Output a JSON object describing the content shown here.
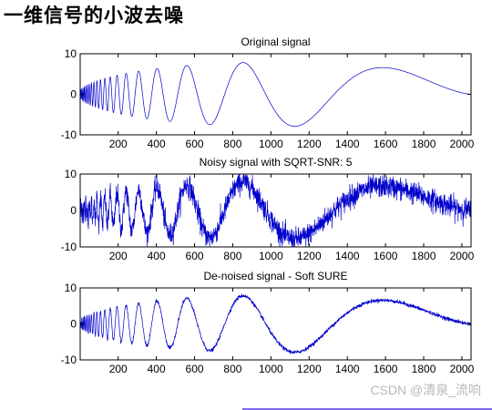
{
  "page": {
    "heading": "一维信号的小波去噪",
    "watermark": "CSDN @清泉_流响",
    "accent_color": "#7b68ee"
  },
  "chart_data": [
    {
      "type": "line",
      "title": "Original signal",
      "xlabel": "",
      "ylabel": "",
      "xlim": [
        1,
        2048
      ],
      "ylim": [
        -10,
        10
      ],
      "xticks": [
        200,
        400,
        600,
        800,
        1000,
        1200,
        1400,
        1600,
        1800,
        2000
      ],
      "xtick_labels": [
        "200",
        "400",
        "600",
        "800",
        "1000",
        "1200",
        "1400",
        "1600",
        "1800",
        "2000"
      ],
      "yticks": [
        10,
        0,
        -10
      ],
      "ytick_labels": [
        "10",
        "0",
        "-10"
      ],
      "grid": false,
      "series": [
        {
          "color": "#0000cc",
          "noise_level": 0,
          "formula": "doppler"
        }
      ]
    },
    {
      "type": "line",
      "title": "Noisy signal with SQRT-SNR: 5",
      "xlabel": "",
      "ylabel": "",
      "xlim": [
        1,
        2048
      ],
      "ylim": [
        -10,
        10
      ],
      "xticks": [
        200,
        400,
        600,
        800,
        1000,
        1200,
        1400,
        1600,
        1800,
        2000
      ],
      "xtick_labels": [
        "200",
        "400",
        "600",
        "800",
        "1000",
        "1200",
        "1400",
        "1600",
        "1800",
        "2000"
      ],
      "yticks": [
        10,
        0,
        -10
      ],
      "ytick_labels": [
        "10",
        "0",
        "-10"
      ],
      "grid": false,
      "series": [
        {
          "color": "#0000cc",
          "noise_level": 1.5,
          "formula": "doppler"
        }
      ]
    },
    {
      "type": "line",
      "title": "De-noised signal - Soft SURE",
      "xlabel": "",
      "ylabel": "",
      "xlim": [
        1,
        2048
      ],
      "ylim": [
        -10,
        10
      ],
      "xticks": [
        200,
        400,
        600,
        800,
        1000,
        1200,
        1400,
        1600,
        1800,
        2000
      ],
      "xtick_labels": [
        "200",
        "400",
        "600",
        "800",
        "1000",
        "1200",
        "1400",
        "1600",
        "1800",
        "2000"
      ],
      "yticks": [
        10,
        0,
        -10
      ],
      "ytick_labels": [
        "10",
        "0",
        "-10"
      ],
      "grid": false,
      "series": [
        {
          "color": "#0000cc",
          "noise_level": 0.25,
          "formula": "doppler"
        }
      ]
    }
  ]
}
